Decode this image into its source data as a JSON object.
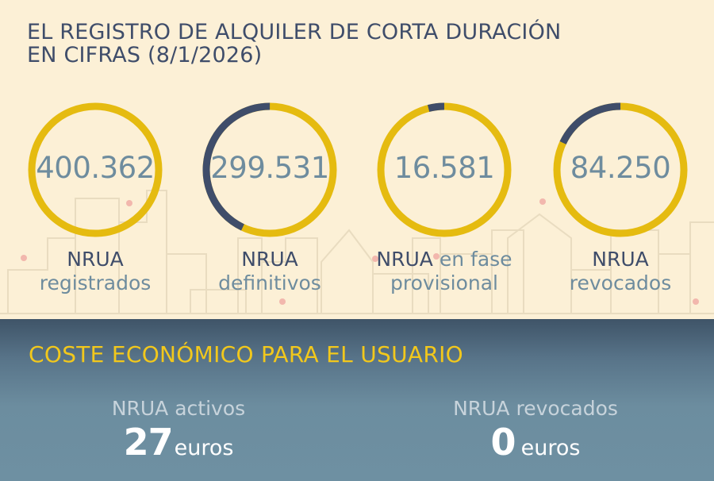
{
  "header": {
    "title_line1": "EL REGISTRO DE ALQUILER DE CORTA DURACIÓN",
    "title_line2": "EN CIFRAS (8/1/2026)"
  },
  "stats": [
    {
      "value": "400.362",
      "label_strong": "NRUA",
      "label_rest": "registrados",
      "dark_fraction": 0.0
    },
    {
      "value": "299.531",
      "label_strong": "NRUA",
      "label_rest": "definitivos",
      "dark_fraction": 0.43
    },
    {
      "value": "16.581",
      "label_strong": "NRUA",
      "label_inline": "en fase",
      "label_rest": "provisional",
      "dark_fraction": 0.04
    },
    {
      "value": "84.250",
      "label_strong": "NRUA",
      "label_rest": "revocados",
      "dark_fraction": 0.18
    }
  ],
  "costs": {
    "title": "COSTE ECONÓMICO PARA EL USUARIO",
    "items": [
      {
        "label": "NRUA activos",
        "amount": "27",
        "unit": "euros"
      },
      {
        "label": "NRUA revocados",
        "amount": "0",
        "unit": "euros"
      }
    ]
  },
  "colors": {
    "gold": "#e5bb10",
    "navy": "#3f4d6a",
    "cream": "#fcf0d6",
    "value_text": "#6e8c9e",
    "cost_title": "#f2c81c"
  }
}
